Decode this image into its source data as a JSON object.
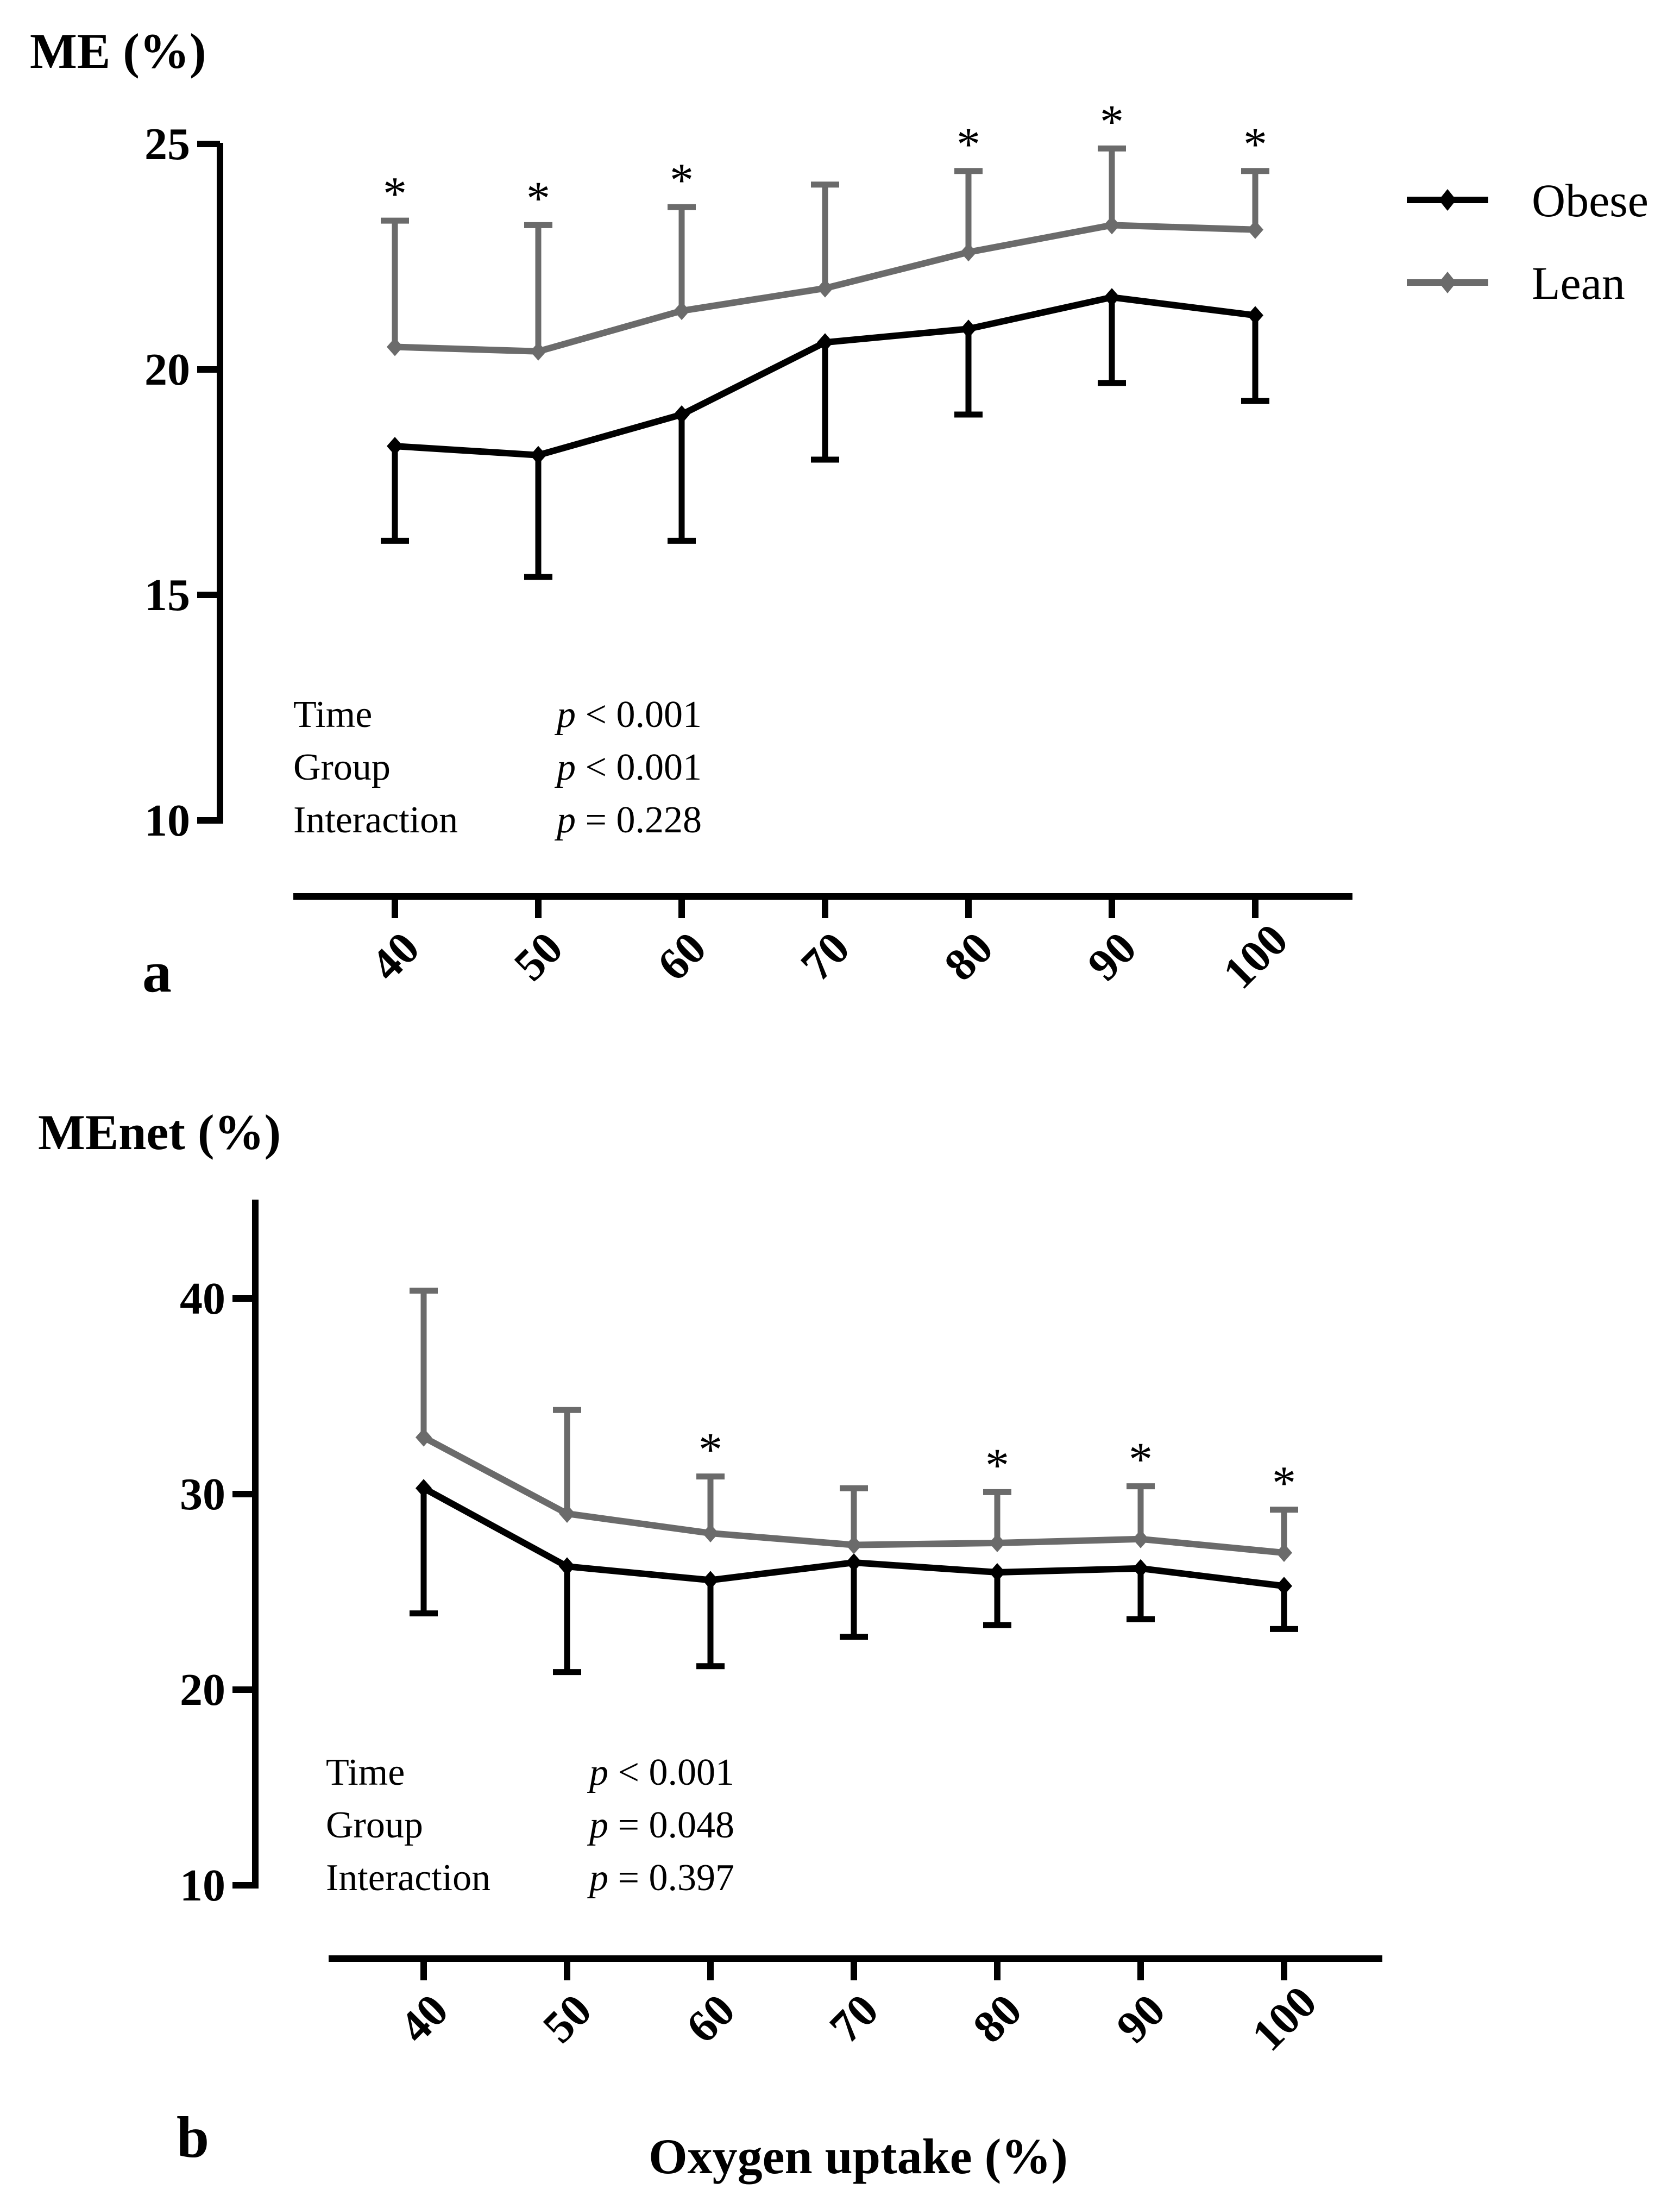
{
  "chart_data": [
    {
      "panel": "a",
      "type": "line",
      "ylabel": "ME (%)",
      "xlabel": "",
      "ylim": [
        10,
        25
      ],
      "yticks": [
        10,
        15,
        20,
        25
      ],
      "x": [
        40,
        50,
        60,
        70,
        80,
        90,
        100
      ],
      "x_tick_labels": [
        "40",
        "50",
        "60",
        "70",
        "80",
        "90",
        "100"
      ],
      "series": [
        {
          "name": "Obese",
          "color": "#000000",
          "values": [
            18.3,
            18.1,
            19.0,
            20.6,
            20.9,
            21.6,
            21.2
          ],
          "sd": [
            2.1,
            2.7,
            2.8,
            2.6,
            1.9,
            1.9,
            1.9
          ],
          "error_direction": "down"
        },
        {
          "name": "Lean",
          "color": "#6b6b6b",
          "values": [
            20.5,
            20.4,
            21.3,
            21.8,
            22.6,
            23.2,
            23.1
          ],
          "sd": [
            2.8,
            2.8,
            2.3,
            2.3,
            1.8,
            1.7,
            1.3
          ],
          "error_direction": "up"
        }
      ],
      "significance": [
        "*",
        "*",
        "*",
        "",
        "*",
        "*",
        "*"
      ],
      "stats": [
        {
          "label": "Time",
          "p": "p",
          "value": " < 0.001"
        },
        {
          "label": "Group",
          "p": "p",
          "value": " < 0.001"
        },
        {
          "label": "Interaction",
          "p": "p",
          "value": " = 0.228"
        }
      ],
      "legend": {
        "position": "top-right",
        "entries": [
          "Obese",
          "Lean"
        ]
      }
    },
    {
      "panel": "b",
      "type": "line",
      "ylabel": "MEnet (%)",
      "xlabel": "Oxygen uptake (%)",
      "ylim": [
        10,
        45
      ],
      "yticks": [
        10,
        20,
        30,
        40
      ],
      "x": [
        40,
        50,
        60,
        70,
        80,
        90,
        100
      ],
      "x_tick_labels": [
        "40",
        "50",
        "60",
        "70",
        "80",
        "90",
        "100"
      ],
      "series": [
        {
          "name": "Obese",
          "color": "#000000",
          "values": [
            30.3,
            26.3,
            25.6,
            26.5,
            26.0,
            26.2,
            25.3
          ],
          "sd": [
            6.4,
            5.4,
            4.4,
            3.8,
            2.7,
            2.6,
            2.2
          ],
          "error_direction": "down"
        },
        {
          "name": "Lean",
          "color": "#6b6b6b",
          "values": [
            32.9,
            29.0,
            28.0,
            27.4,
            27.5,
            27.7,
            27.0
          ],
          "sd": [
            7.5,
            5.3,
            2.9,
            2.9,
            2.6,
            2.7,
            2.2
          ],
          "error_direction": "up"
        }
      ],
      "significance": [
        "",
        "",
        "*",
        "",
        "*",
        "*",
        "*"
      ],
      "stats": [
        {
          "label": "Time",
          "p": "p",
          "value": " < 0.001"
        },
        {
          "label": "Group",
          "p": "p",
          "value": " = 0.048"
        },
        {
          "label": "Interaction",
          "p": "p",
          "value": " = 0.397"
        }
      ]
    }
  ]
}
